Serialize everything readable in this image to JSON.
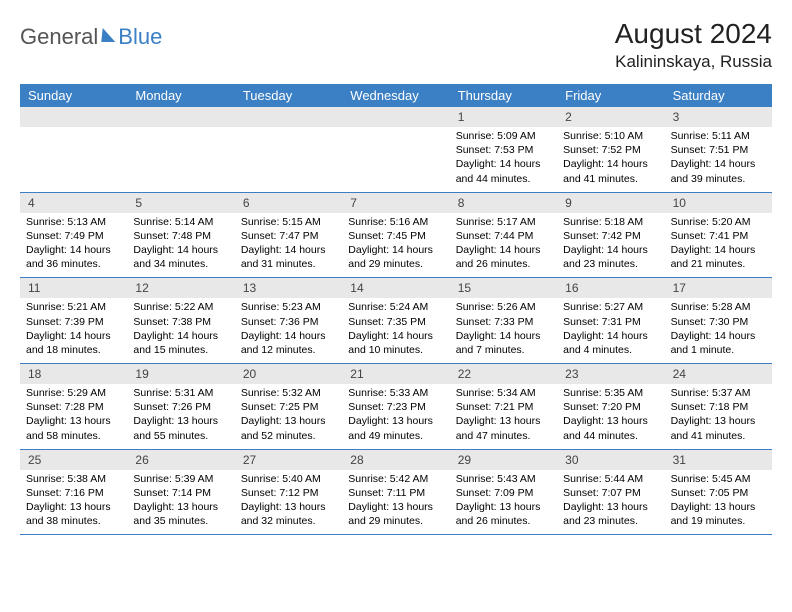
{
  "colors": {
    "brand_blue": "#3b7fc4",
    "header_text": "#ffffff",
    "daynum_bg": "#e8e8e8",
    "page_bg": "#ffffff",
    "body_text": "#000000",
    "logo_gray": "#555555"
  },
  "typography": {
    "month_title_fontsize": 28,
    "location_fontsize": 17,
    "weekday_fontsize": 13,
    "daynum_fontsize": 12,
    "detail_fontsize": 10.5,
    "font_family": "Arial"
  },
  "logo": {
    "part1": "General",
    "part2": "Blue"
  },
  "title": "August 2024",
  "location": "Kalininskaya, Russia",
  "weekdays": [
    "Sunday",
    "Monday",
    "Tuesday",
    "Wednesday",
    "Thursday",
    "Friday",
    "Saturday"
  ],
  "weeks": [
    {
      "nums": [
        "",
        "",
        "",
        "",
        "1",
        "2",
        "3"
      ],
      "details": [
        "",
        "",
        "",
        "",
        "Sunrise: 5:09 AM\nSunset: 7:53 PM\nDaylight: 14 hours and 44 minutes.",
        "Sunrise: 5:10 AM\nSunset: 7:52 PM\nDaylight: 14 hours and 41 minutes.",
        "Sunrise: 5:11 AM\nSunset: 7:51 PM\nDaylight: 14 hours and 39 minutes."
      ]
    },
    {
      "nums": [
        "4",
        "5",
        "6",
        "7",
        "8",
        "9",
        "10"
      ],
      "details": [
        "Sunrise: 5:13 AM\nSunset: 7:49 PM\nDaylight: 14 hours and 36 minutes.",
        "Sunrise: 5:14 AM\nSunset: 7:48 PM\nDaylight: 14 hours and 34 minutes.",
        "Sunrise: 5:15 AM\nSunset: 7:47 PM\nDaylight: 14 hours and 31 minutes.",
        "Sunrise: 5:16 AM\nSunset: 7:45 PM\nDaylight: 14 hours and 29 minutes.",
        "Sunrise: 5:17 AM\nSunset: 7:44 PM\nDaylight: 14 hours and 26 minutes.",
        "Sunrise: 5:18 AM\nSunset: 7:42 PM\nDaylight: 14 hours and 23 minutes.",
        "Sunrise: 5:20 AM\nSunset: 7:41 PM\nDaylight: 14 hours and 21 minutes."
      ]
    },
    {
      "nums": [
        "11",
        "12",
        "13",
        "14",
        "15",
        "16",
        "17"
      ],
      "details": [
        "Sunrise: 5:21 AM\nSunset: 7:39 PM\nDaylight: 14 hours and 18 minutes.",
        "Sunrise: 5:22 AM\nSunset: 7:38 PM\nDaylight: 14 hours and 15 minutes.",
        "Sunrise: 5:23 AM\nSunset: 7:36 PM\nDaylight: 14 hours and 12 minutes.",
        "Sunrise: 5:24 AM\nSunset: 7:35 PM\nDaylight: 14 hours and 10 minutes.",
        "Sunrise: 5:26 AM\nSunset: 7:33 PM\nDaylight: 14 hours and 7 minutes.",
        "Sunrise: 5:27 AM\nSunset: 7:31 PM\nDaylight: 14 hours and 4 minutes.",
        "Sunrise: 5:28 AM\nSunset: 7:30 PM\nDaylight: 14 hours and 1 minute."
      ]
    },
    {
      "nums": [
        "18",
        "19",
        "20",
        "21",
        "22",
        "23",
        "24"
      ],
      "details": [
        "Sunrise: 5:29 AM\nSunset: 7:28 PM\nDaylight: 13 hours and 58 minutes.",
        "Sunrise: 5:31 AM\nSunset: 7:26 PM\nDaylight: 13 hours and 55 minutes.",
        "Sunrise: 5:32 AM\nSunset: 7:25 PM\nDaylight: 13 hours and 52 minutes.",
        "Sunrise: 5:33 AM\nSunset: 7:23 PM\nDaylight: 13 hours and 49 minutes.",
        "Sunrise: 5:34 AM\nSunset: 7:21 PM\nDaylight: 13 hours and 47 minutes.",
        "Sunrise: 5:35 AM\nSunset: 7:20 PM\nDaylight: 13 hours and 44 minutes.",
        "Sunrise: 5:37 AM\nSunset: 7:18 PM\nDaylight: 13 hours and 41 minutes."
      ]
    },
    {
      "nums": [
        "25",
        "26",
        "27",
        "28",
        "29",
        "30",
        "31"
      ],
      "details": [
        "Sunrise: 5:38 AM\nSunset: 7:16 PM\nDaylight: 13 hours and 38 minutes.",
        "Sunrise: 5:39 AM\nSunset: 7:14 PM\nDaylight: 13 hours and 35 minutes.",
        "Sunrise: 5:40 AM\nSunset: 7:12 PM\nDaylight: 13 hours and 32 minutes.",
        "Sunrise: 5:42 AM\nSunset: 7:11 PM\nDaylight: 13 hours and 29 minutes.",
        "Sunrise: 5:43 AM\nSunset: 7:09 PM\nDaylight: 13 hours and 26 minutes.",
        "Sunrise: 5:44 AM\nSunset: 7:07 PM\nDaylight: 13 hours and 23 minutes.",
        "Sunrise: 5:45 AM\nSunset: 7:05 PM\nDaylight: 13 hours and 19 minutes."
      ]
    }
  ]
}
